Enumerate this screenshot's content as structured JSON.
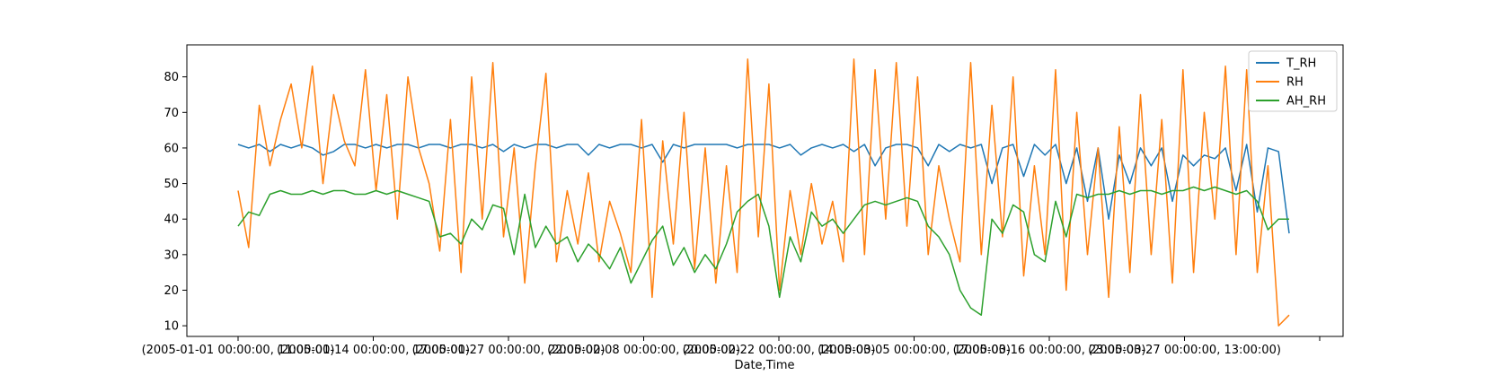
{
  "chart_data": {
    "type": "line",
    "title": "",
    "xlabel": "Date,Time",
    "ylabel": "",
    "ylim": [
      7,
      89
    ],
    "yticks": [
      10,
      20,
      30,
      40,
      50,
      60,
      70,
      80
    ],
    "xticks": [
      "(2005-01-01 00:00:00, 11:00:00)",
      "(2005-01-14 00:00:00, 17:00:00)",
      "(2005-01-27 00:00:00, 22:00:00)",
      "(2005-02-08 00:00:00, 20:00:00)",
      "(2005-02-22 00:00:00, 14:00:00)",
      "(2005-03-05 00:00:00, 17:00:00)",
      "(2005-03-16 00:00:00, 23:00:00)",
      "(2005-03-27 00:00:00, 13:00:00)",
      ""
    ],
    "x_count": 100,
    "grid": false,
    "legend_position": "top-right",
    "series": [
      {
        "name": "T_RH",
        "color": "#1f77b4",
        "values": [
          61,
          60,
          61,
          59,
          61,
          60,
          61,
          60,
          58,
          59,
          61,
          61,
          60,
          61,
          60,
          61,
          61,
          60,
          61,
          61,
          60,
          61,
          61,
          60,
          61,
          59,
          61,
          60,
          61,
          61,
          60,
          61,
          61,
          58,
          61,
          60,
          61,
          61,
          60,
          61,
          56,
          61,
          60,
          61,
          61,
          61,
          61,
          60,
          61,
          61,
          61,
          60,
          61,
          58,
          60,
          61,
          60,
          61,
          59,
          61,
          55,
          60,
          61,
          61,
          60,
          55,
          61,
          59,
          61,
          60,
          61,
          50,
          60,
          61,
          52,
          61,
          58,
          61,
          50,
          60,
          45,
          60,
          40,
          58,
          50,
          60,
          55,
          60,
          45,
          58,
          55,
          58,
          57,
          60,
          48,
          61,
          42,
          60,
          59,
          36
        ]
      },
      {
        "name": "RH",
        "color": "#ff7f0e",
        "values": [
          48,
          32,
          72,
          55,
          68,
          78,
          60,
          83,
          50,
          75,
          62,
          55,
          82,
          48,
          75,
          40,
          80,
          60,
          50,
          31,
          68,
          25,
          80,
          40,
          84,
          35,
          60,
          22,
          55,
          81,
          28,
          48,
          33,
          53,
          28,
          45,
          36,
          25,
          68,
          18,
          62,
          33,
          70,
          26,
          60,
          22,
          55,
          25,
          85,
          35,
          78,
          20,
          48,
          30,
          50,
          33,
          45,
          28,
          85,
          30,
          82,
          40,
          84,
          38,
          80,
          30,
          55,
          40,
          28,
          84,
          30,
          72,
          35,
          80,
          24,
          55,
          30,
          82,
          20,
          70,
          30,
          60,
          18,
          66,
          25,
          75,
          30,
          68,
          22,
          82,
          25,
          70,
          40,
          83,
          30,
          82,
          25,
          55,
          10,
          13
        ]
      },
      {
        "name": "AH_RH",
        "color": "#2ca02c",
        "values": [
          38,
          42,
          41,
          47,
          48,
          47,
          47,
          48,
          47,
          48,
          48,
          47,
          47,
          48,
          47,
          48,
          47,
          46,
          45,
          35,
          36,
          33,
          40,
          37,
          44,
          43,
          30,
          47,
          32,
          38,
          33,
          35,
          28,
          33,
          30,
          26,
          32,
          22,
          28,
          34,
          38,
          27,
          32,
          25,
          30,
          26,
          33,
          42,
          45,
          47,
          38,
          18,
          35,
          28,
          42,
          38,
          40,
          36,
          40,
          44,
          45,
          44,
          45,
          46,
          45,
          38,
          35,
          30,
          20,
          15,
          13,
          40,
          36,
          44,
          42,
          30,
          28,
          45,
          35,
          47,
          46,
          47,
          47,
          48,
          47,
          48,
          48,
          47,
          48,
          48,
          49,
          48,
          49,
          48,
          47,
          48,
          45,
          37,
          40,
          40
        ]
      }
    ]
  }
}
